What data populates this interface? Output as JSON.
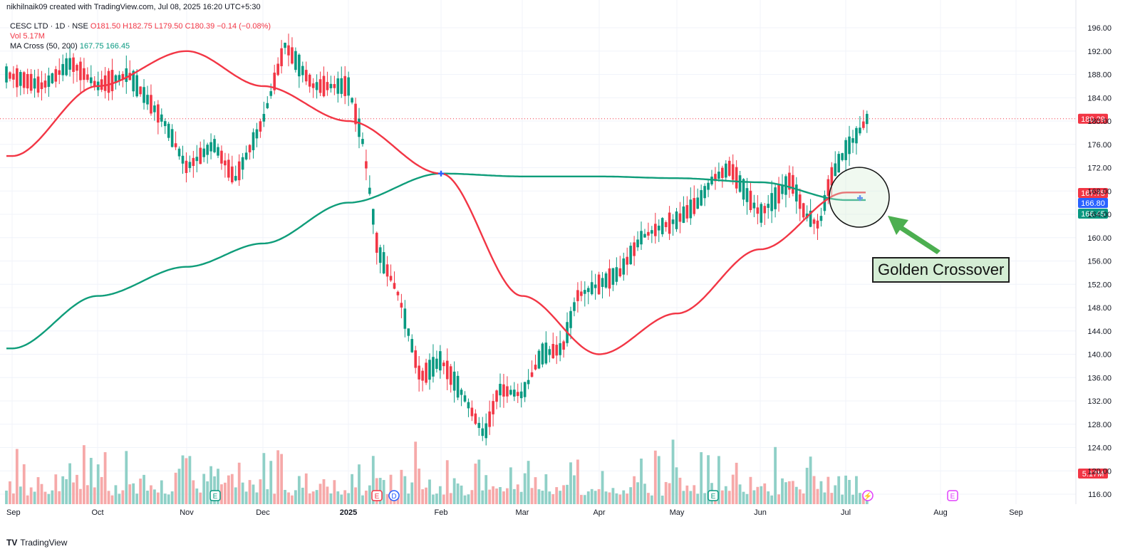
{
  "header": {
    "attribution": "nikhilnaik09 created with TradingView.com, Jul 08, 2025 16:20 UTC+5:30"
  },
  "legend": {
    "symbol": "CESC LTD · 1D · NSE",
    "ohlc": "O181.50  H182.75  L179.50  C180.39  −0.14 (−0.08%)",
    "vol": "Vol 5.17M",
    "ma_label": "MA Cross (50, 200)",
    "ma_values": "167.75  166.45"
  },
  "annotation": {
    "text": "Golden Crossover"
  },
  "brand": {
    "logo": "TV",
    "text": "TradingView"
  },
  "colors": {
    "up": "#089981",
    "down": "#f23645",
    "ma50": "#f23645",
    "ma200": "#0f9d7a",
    "vol_up": "#8fd0c7",
    "vol_down": "#f6a9a9",
    "grid": "#f0f3fa",
    "crossover_marker": "#2962ff",
    "callout_bg": "#d4edd4",
    "arrow": "#4caf50"
  },
  "chart_data": {
    "type": "candlestick",
    "symbol": "CESC LTD",
    "interval": "1D",
    "exchange": "NSE",
    "ylim": [
      114,
      198
    ],
    "y_ticks": [
      "196.00",
      "192.00",
      "188.00",
      "184.00",
      "180.00",
      "176.00",
      "172.00",
      "168.00",
      "164.00",
      "160.00",
      "156.00",
      "152.00",
      "148.00",
      "144.00",
      "140.00",
      "136.00",
      "132.00",
      "128.00",
      "124.00",
      "120.00",
      "116.00"
    ],
    "x_ticks": [
      "Sep",
      "Oct",
      "Nov",
      "Dec",
      "2025",
      "Feb",
      "Mar",
      "Apr",
      "May",
      "Jun",
      "Jul",
      "Aug",
      "Sep"
    ],
    "last_price": 180.39,
    "price_labels": [
      {
        "text": "180.39",
        "value": 180.39,
        "color": "#f23645"
      },
      {
        "text": "167.75",
        "value": 167.75,
        "color": "#f23645"
      },
      {
        "text": "166.80",
        "value": 166.8,
        "color": "#2962ff"
      },
      {
        "text": "166.45",
        "value": 166.45,
        "color": "#089981"
      }
    ],
    "volume_label": {
      "text": "5.17M",
      "color": "#f23645"
    },
    "series": [
      {
        "name": "MA 50",
        "values_at_month_ticks": [
          [
            "Sep",
            174
          ],
          [
            "Oct",
            186
          ],
          [
            "Nov",
            192
          ],
          [
            "Dec",
            186
          ],
          [
            "2025",
            180
          ],
          [
            "Feb",
            171
          ],
          [
            "Mar",
            150
          ],
          [
            "Apr",
            140
          ],
          [
            "May",
            147
          ],
          [
            "Jun",
            158
          ],
          [
            "Jul",
            167.75
          ]
        ]
      },
      {
        "name": "MA 200",
        "values_at_month_ticks": [
          [
            "Sep",
            141
          ],
          [
            "Oct",
            150
          ],
          [
            "Nov",
            155
          ],
          [
            "Dec",
            159
          ],
          [
            "2025",
            166
          ],
          [
            "Feb",
            171
          ],
          [
            "Mar",
            170.5
          ],
          [
            "Apr",
            170.5
          ],
          [
            "May",
            170.2
          ],
          [
            "Jun",
            169.5
          ],
          [
            "Jul",
            166.45
          ]
        ]
      }
    ],
    "events": [
      {
        "label": "E",
        "month": "Nov",
        "kind": "earnings"
      },
      {
        "label": "E",
        "month": "2025",
        "kind": "earnings"
      },
      {
        "label": "D",
        "month": "2025",
        "kind": "dividend"
      },
      {
        "label": "E",
        "month": "May",
        "kind": "earnings"
      },
      {
        "label": "⚡",
        "month": "Jul",
        "kind": "split"
      },
      {
        "label": "E",
        "month": "Aug",
        "kind": "earnings"
      }
    ],
    "crossovers": [
      {
        "month": "Feb",
        "value": 171,
        "kind": "death cross"
      },
      {
        "month": "Jul",
        "value": 166.8,
        "kind": "golden cross"
      }
    ]
  }
}
